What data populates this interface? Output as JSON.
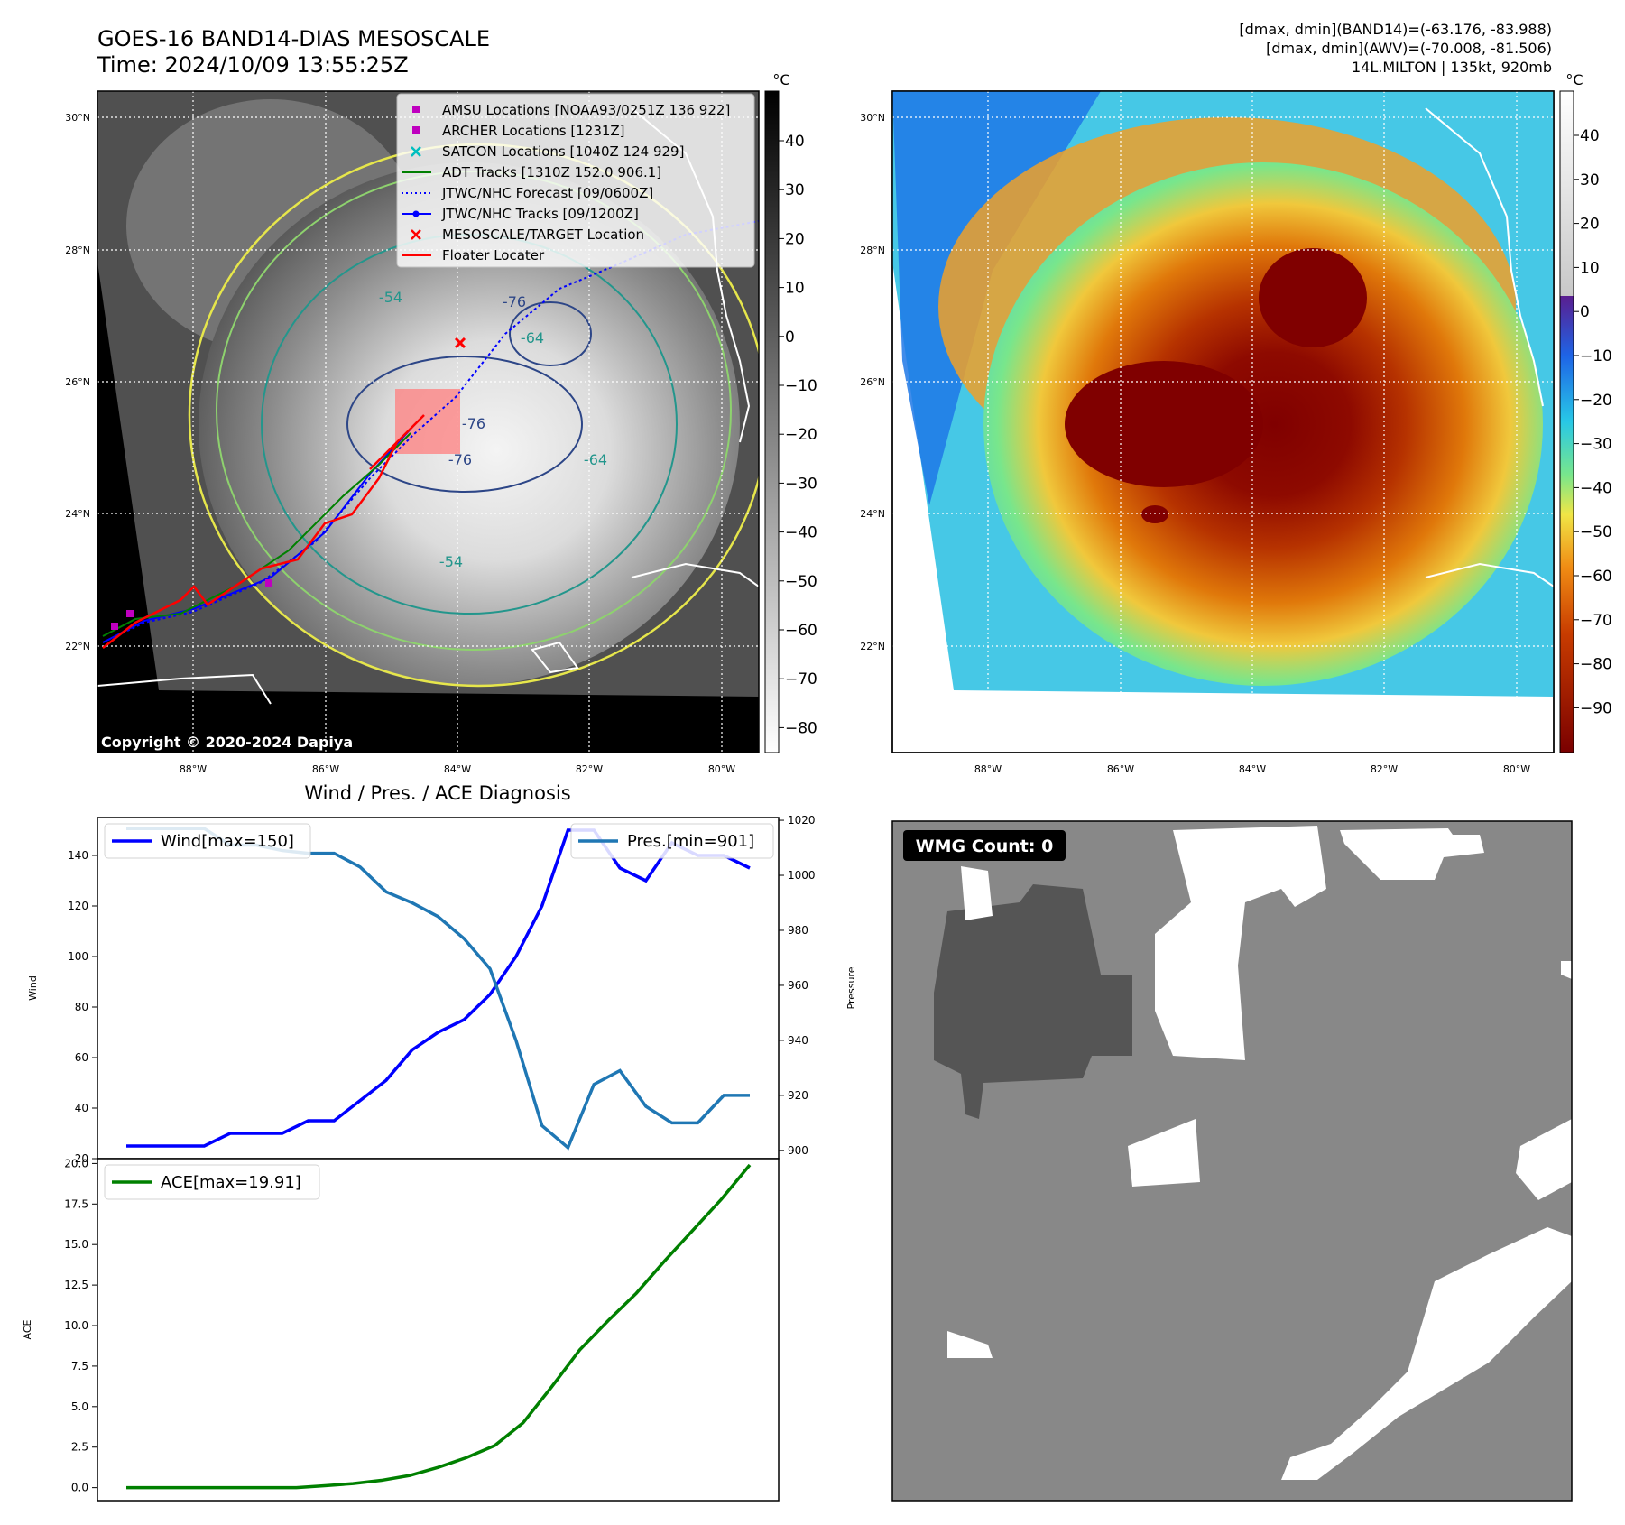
{
  "header": {
    "title_line1": "GOES-16 BAND14-DIAS MESOSCALE",
    "title_line2": "Time: 2024/10/09 13:55:25Z",
    "info_line1": "[dmax, dmin](BAND14)=(-63.176, -83.988)",
    "info_line2": "[dmax, dmin](AWV)=(-70.008, -81.506)",
    "info_line3": "14L.MILTON | 135kt, 920mb"
  },
  "map1": {
    "copyright": "Copyright © 2020-2024 Dapiya",
    "lat_labels": [
      "30°N",
      "28°N",
      "26°N",
      "24°N",
      "22°N"
    ],
    "lon_labels": [
      "88°W",
      "86°W",
      "84°W",
      "82°W",
      "80°W"
    ],
    "contour_labels": [
      "-54",
      "-76",
      "-64",
      "-76",
      "-76",
      "-54",
      "-64"
    ],
    "legend": [
      {
        "label": "AMSU Locations [NOAA93/0251Z 136 922]",
        "color": "#bf00bf"
      },
      {
        "label": "ARCHER Locations [1231Z]",
        "color": "#bf00bf"
      },
      {
        "label": "SATCON Locations [1040Z 124 929]",
        "color": "#00bfbf"
      },
      {
        "label": "ADT Tracks [1310Z 152.0 906.1]",
        "color": "#008000"
      },
      {
        "label": "JTWC/NHC Forecast [09/0600Z]",
        "color": "#0000ff"
      },
      {
        "label": "JTWC/NHC Tracks [09/1200Z]",
        "color": "#0000ff"
      },
      {
        "label": "MESOSCALE/TARGET Location",
        "color": "#ff0000"
      },
      {
        "label": "Floater Locater",
        "color": "#ff0000"
      }
    ],
    "colorbar_unit": "°C",
    "colorbar_ticks": [
      "40",
      "30",
      "20",
      "10",
      "0",
      "−10",
      "−20",
      "−30",
      "−40",
      "−50",
      "−60",
      "−70",
      "−80"
    ]
  },
  "map2": {
    "lat_labels": [
      "30°N",
      "28°N",
      "26°N",
      "24°N",
      "22°N"
    ],
    "lon_labels": [
      "88°W",
      "86°W",
      "84°W",
      "82°W",
      "80°W"
    ],
    "colorbar_unit": "°C",
    "colorbar_ticks": [
      "40",
      "30",
      "20",
      "10",
      "0",
      "−10",
      "−20",
      "−30",
      "−40",
      "−50",
      "−60",
      "−70",
      "−80",
      "−90"
    ]
  },
  "wmg": {
    "label": "WMG Count: 0"
  },
  "chart_data": [
    {
      "type": "line",
      "title": "Wind / Pres. / ACE Diagnosis",
      "ylabel": "Wind",
      "ylabel_right": "Pressure",
      "ylim": [
        20,
        155
      ],
      "ylim_right": [
        897,
        1021
      ],
      "yticks": [
        20,
        40,
        60,
        80,
        100,
        120,
        140
      ],
      "yticks_right": [
        900,
        920,
        940,
        960,
        980,
        1000,
        1020
      ],
      "series": [
        {
          "name": "Wind[max=150]",
          "color": "#0000ff",
          "axis": "left",
          "values": [
            25,
            25,
            25,
            25,
            30,
            30,
            30,
            35,
            35,
            43,
            51,
            63,
            70,
            75,
            85,
            100,
            120,
            150,
            150,
            135,
            130,
            145,
            140,
            140,
            135
          ]
        },
        {
          "name": "Pres.[min=901]",
          "color": "#1f77b4",
          "axis": "right",
          "values": [
            1017,
            1017,
            1017,
            1017,
            1011,
            1011,
            1009,
            1008,
            1008,
            1003,
            994,
            990,
            985,
            977,
            966,
            940,
            909,
            901,
            924,
            929,
            916,
            910,
            910,
            920,
            920
          ]
        }
      ]
    },
    {
      "type": "line",
      "ylabel": "ACE",
      "ylim": [
        -0.8,
        20.3
      ],
      "yticks": [
        0.0,
        2.5,
        5.0,
        7.5,
        10.0,
        12.5,
        15.0,
        17.5,
        20.0
      ],
      "ytick_labels": [
        "0.0",
        "2.5",
        "5.0",
        "7.5",
        "10.0",
        "12.5",
        "15.0",
        "17.5",
        "20.0"
      ],
      "series": [
        {
          "name": "ACE[max=19.91]",
          "color": "#008000",
          "values": [
            0,
            0,
            0,
            0,
            0,
            0,
            0,
            0.12,
            0.25,
            0.45,
            0.75,
            1.25,
            1.85,
            2.6,
            4.0,
            6.2,
            8.5,
            10.3,
            12.0,
            14.0,
            15.9,
            17.8,
            19.91
          ]
        }
      ]
    }
  ]
}
